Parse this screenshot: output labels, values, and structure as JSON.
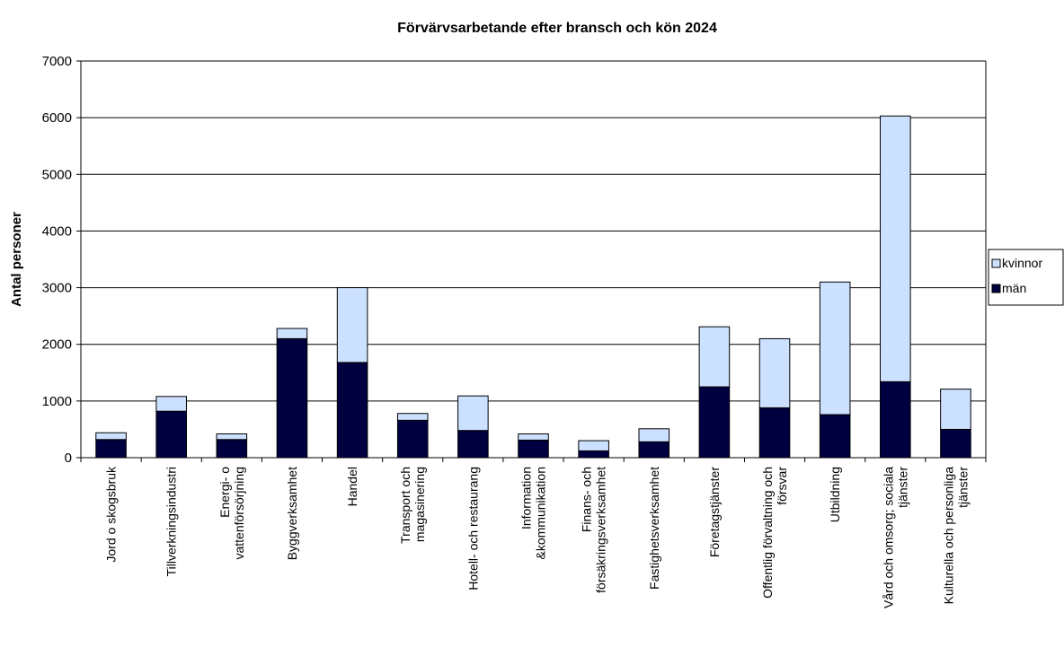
{
  "chart_data": {
    "type": "stacked_bar",
    "title": "Förvärvsarbetande efter bransch och kön 2024",
    "y_label": "Antal personer",
    "categories": [
      "Jord o skogsbruk",
      "Tillverkningsindustri",
      "Energi- o\nvattenförsörjning",
      "Byggverksamhet",
      "Handel",
      "Transport och\nmagasinering",
      "Hotell- och restaurang",
      "Information\n&kommunikation",
      "Finans- och\nförsäkringsverksamhet",
      "Fastighetsverksamhet",
      "Företagstjänster",
      "Offentlig förvaltning och\nförsvar",
      "Utbildning",
      "Vård och omsorg; sociala\ntjänster",
      "Kulturella och personliga\ntjänster"
    ],
    "series": [
      {
        "name": "män",
        "color": "#000040",
        "values": [
          320,
          820,
          320,
          2100,
          1680,
          660,
          480,
          310,
          120,
          280,
          1250,
          880,
          760,
          1340,
          500
        ]
      },
      {
        "name": "kvinnor",
        "color": "#cce0ff",
        "values": [
          120,
          260,
          100,
          180,
          1320,
          120,
          610,
          110,
          180,
          230,
          1060,
          1220,
          2340,
          4690,
          710
        ]
      }
    ],
    "ylim": [
      0,
      7000
    ],
    "yticks": [
      0,
      1000,
      2000,
      3000,
      4000,
      5000,
      6000,
      7000
    ],
    "grid": true,
    "legend": "right"
  }
}
